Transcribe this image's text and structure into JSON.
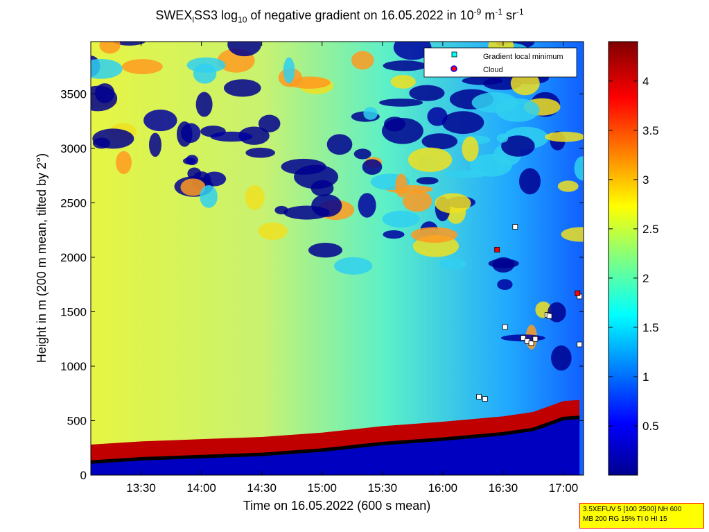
{
  "chart_data": {
    "type": "heatmap",
    "title": {
      "pre": "SWEX",
      "sub1": "l",
      "mid": "SS3 log",
      "sub2": "10",
      "mid2": " of negative gradient on 16.05.2022 in 10",
      "sup1": "-9",
      "mid3": " m",
      "sup2": "-1",
      "mid4": " sr",
      "sup3": "-1"
    },
    "xlabel": "Time on 16.05.2022 (600 s mean)",
    "ylabel": "Height in m (200 m mean, tilted by 2°)",
    "x_ticks": [
      "13:30",
      "14:00",
      "14:30",
      "15:00",
      "15:30",
      "16:00",
      "16:30",
      "17:00"
    ],
    "x_range": [
      "13:05",
      "17:10"
    ],
    "y_ticks": [
      0,
      500,
      1000,
      1500,
      2000,
      2500,
      3000,
      3500
    ],
    "y_range": [
      0,
      3980
    ],
    "colorbar": {
      "ticks": [
        0.5,
        1,
        1.5,
        2,
        2.5,
        3,
        3.5,
        4
      ],
      "range": [
        0,
        4.4
      ],
      "colormap": "jet"
    },
    "legend": {
      "placement": "top-right",
      "entries": [
        {
          "label": "Gradient local minimum",
          "marker": "square",
          "color": "#00ffff"
        },
        {
          "label": "Cloud",
          "marker": "circle",
          "color": "#ff0000"
        }
      ]
    },
    "boundary_layer": [
      {
        "time": "13:05",
        "height": 120
      },
      {
        "time": "13:30",
        "height": 150
      },
      {
        "time": "14:00",
        "height": 170
      },
      {
        "time": "14:30",
        "height": 190
      },
      {
        "time": "15:00",
        "height": 230
      },
      {
        "time": "15:30",
        "height": 290
      },
      {
        "time": "16:00",
        "height": 330
      },
      {
        "time": "16:18",
        "height": 360
      },
      {
        "time": "16:30",
        "height": 380
      },
      {
        "time": "16:45",
        "height": 420
      },
      {
        "time": "17:00",
        "height": 520
      },
      {
        "time": "17:08",
        "height": 530
      }
    ],
    "gradient_minima": [
      {
        "time": "16:18",
        "height": 720
      },
      {
        "time": "16:21",
        "height": 700
      },
      {
        "time": "16:36",
        "height": 2280
      },
      {
        "time": "16:31",
        "height": 1360
      },
      {
        "time": "16:40",
        "height": 1260
      },
      {
        "time": "16:42",
        "height": 1230
      },
      {
        "time": "16:44",
        "height": 1210
      },
      {
        "time": "16:46",
        "height": 1250
      },
      {
        "time": "16:52",
        "height": 1470
      },
      {
        "time": "16:53",
        "height": 1460
      },
      {
        "time": "17:08",
        "height": 1640
      },
      {
        "time": "17:08",
        "height": 1200
      }
    ],
    "clouds": [
      {
        "time": "16:27",
        "height": 2070
      },
      {
        "time": "17:07",
        "height": 1670
      }
    ]
  },
  "info_box": {
    "line1": "3.5XEFUV 5 [100 2500] NH 600",
    "line2": "MB 200 RG 15% TI 0 HI 15"
  },
  "colors": {
    "background_low": "#00008f",
    "accent_high": "#800000"
  }
}
